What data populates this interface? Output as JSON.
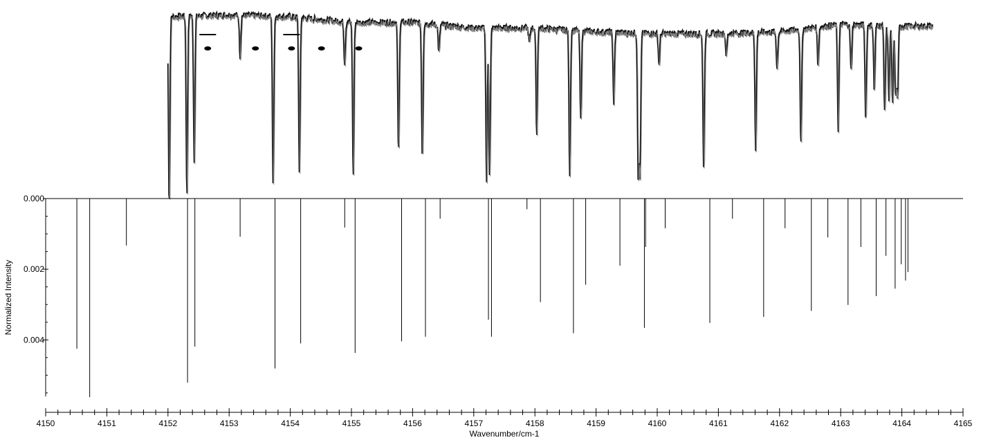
{
  "chart_data": {
    "type": "bar",
    "title": "",
    "xlabel": "Wavenumber/cm-1",
    "ylabel": "Normalized Intensity",
    "xlim": [
      4150,
      4165
    ],
    "ylim_lower": [
      0,
      0.0056
    ],
    "x_ticks": [
      "4150",
      "4151",
      "4152",
      "4153",
      "4154",
      "4155",
      "4156",
      "4157",
      "4158",
      "4159",
      "4160",
      "4161",
      "4162",
      "4163",
      "4164",
      "4165"
    ],
    "y_ticks": [
      "0.000",
      "0.002",
      "0.004"
    ],
    "y_tick_values": [
      0,
      0.002,
      0.004
    ],
    "color": "#000000",
    "simulated_sticks": {
      "x": [
        4150.51,
        4150.72,
        4151.32,
        4152.32,
        4152.44,
        4153.18,
        4153.75,
        4154.17,
        4154.89,
        4155.06,
        4155.82,
        4156.21,
        4156.45,
        4157.24,
        4157.29,
        4157.87,
        4158.09,
        4158.63,
        4158.83,
        4159.39,
        4159.79,
        4159.81,
        4160.13,
        4160.86,
        4161.23,
        4161.74,
        4162.09,
        4162.52,
        4162.79,
        4163.12,
        4163.33,
        4163.58,
        4163.74,
        4163.89,
        4163.99,
        4164.06,
        4164.1
      ],
      "values": [
        0.00425,
        0.00562,
        0.00133,
        0.00521,
        0.00419,
        0.00108,
        0.00481,
        0.0041,
        0.00082,
        0.00437,
        0.00404,
        0.00391,
        0.00057,
        0.00343,
        0.00391,
        0.0003,
        0.00293,
        0.00381,
        0.00244,
        0.0019,
        0.00366,
        0.00137,
        0.00084,
        0.00352,
        0.00057,
        0.00335,
        0.00084,
        0.00318,
        0.0011,
        0.00301,
        0.00137,
        0.00276,
        0.00162,
        0.00255,
        0.00186,
        0.00232,
        0.00208
      ]
    },
    "observed_spectrum": {
      "note_x_range": [
        4152.0,
        4164.5
      ],
      "dips_x": [
        4152.02,
        4152.31,
        4152.43,
        4153.18,
        4153.72,
        4154.15,
        4154.89,
        4155.03,
        4155.77,
        4156.16,
        4156.43,
        4157.21,
        4157.26,
        4157.91,
        4158.03,
        4158.57,
        4158.75,
        4159.29,
        4159.69,
        4159.72,
        4160.03,
        4160.76,
        4161.13,
        4161.61,
        4161.96,
        4162.35,
        4162.63,
        4162.96,
        4163.17,
        4163.41,
        4163.55,
        4163.72,
        4163.79,
        4163.85,
        4163.9,
        4163.93
      ],
      "dips_depth": [
        1.0,
        0.96,
        0.77,
        0.22,
        0.91,
        0.84,
        0.22,
        0.82,
        0.7,
        0.72,
        0.15,
        0.82,
        0.79,
        0.08,
        0.57,
        0.77,
        0.48,
        0.38,
        0.77,
        0.73,
        0.17,
        0.73,
        0.12,
        0.62,
        0.2,
        0.62,
        0.2,
        0.56,
        0.25,
        0.5,
        0.35,
        0.47,
        0.42,
        0.43,
        0.36,
        0.38
      ],
      "continuum": [
        [
          4152.0,
          0.97
        ],
        [
          4153.0,
          0.98
        ],
        [
          4154.0,
          0.97
        ],
        [
          4155.0,
          0.94
        ],
        [
          4156.0,
          0.94
        ],
        [
          4157.0,
          0.91
        ],
        [
          4158.0,
          0.91
        ],
        [
          4159.0,
          0.89
        ],
        [
          4160.0,
          0.88
        ],
        [
          4161.0,
          0.88
        ],
        [
          4162.0,
          0.89
        ],
        [
          4163.0,
          0.93
        ],
        [
          4164.0,
          0.92
        ],
        [
          4164.5,
          0.92
        ]
      ],
      "markers": [
        {
          "x": 4152.65,
          "kind": "bar-dot"
        },
        {
          "x": 4153.43,
          "kind": "dot"
        },
        {
          "x": 4154.02,
          "kind": "bar-dot"
        },
        {
          "x": 4154.51,
          "kind": "dot"
        },
        {
          "x": 4155.12,
          "kind": "dot"
        }
      ]
    },
    "grid": false,
    "legend": "none"
  }
}
